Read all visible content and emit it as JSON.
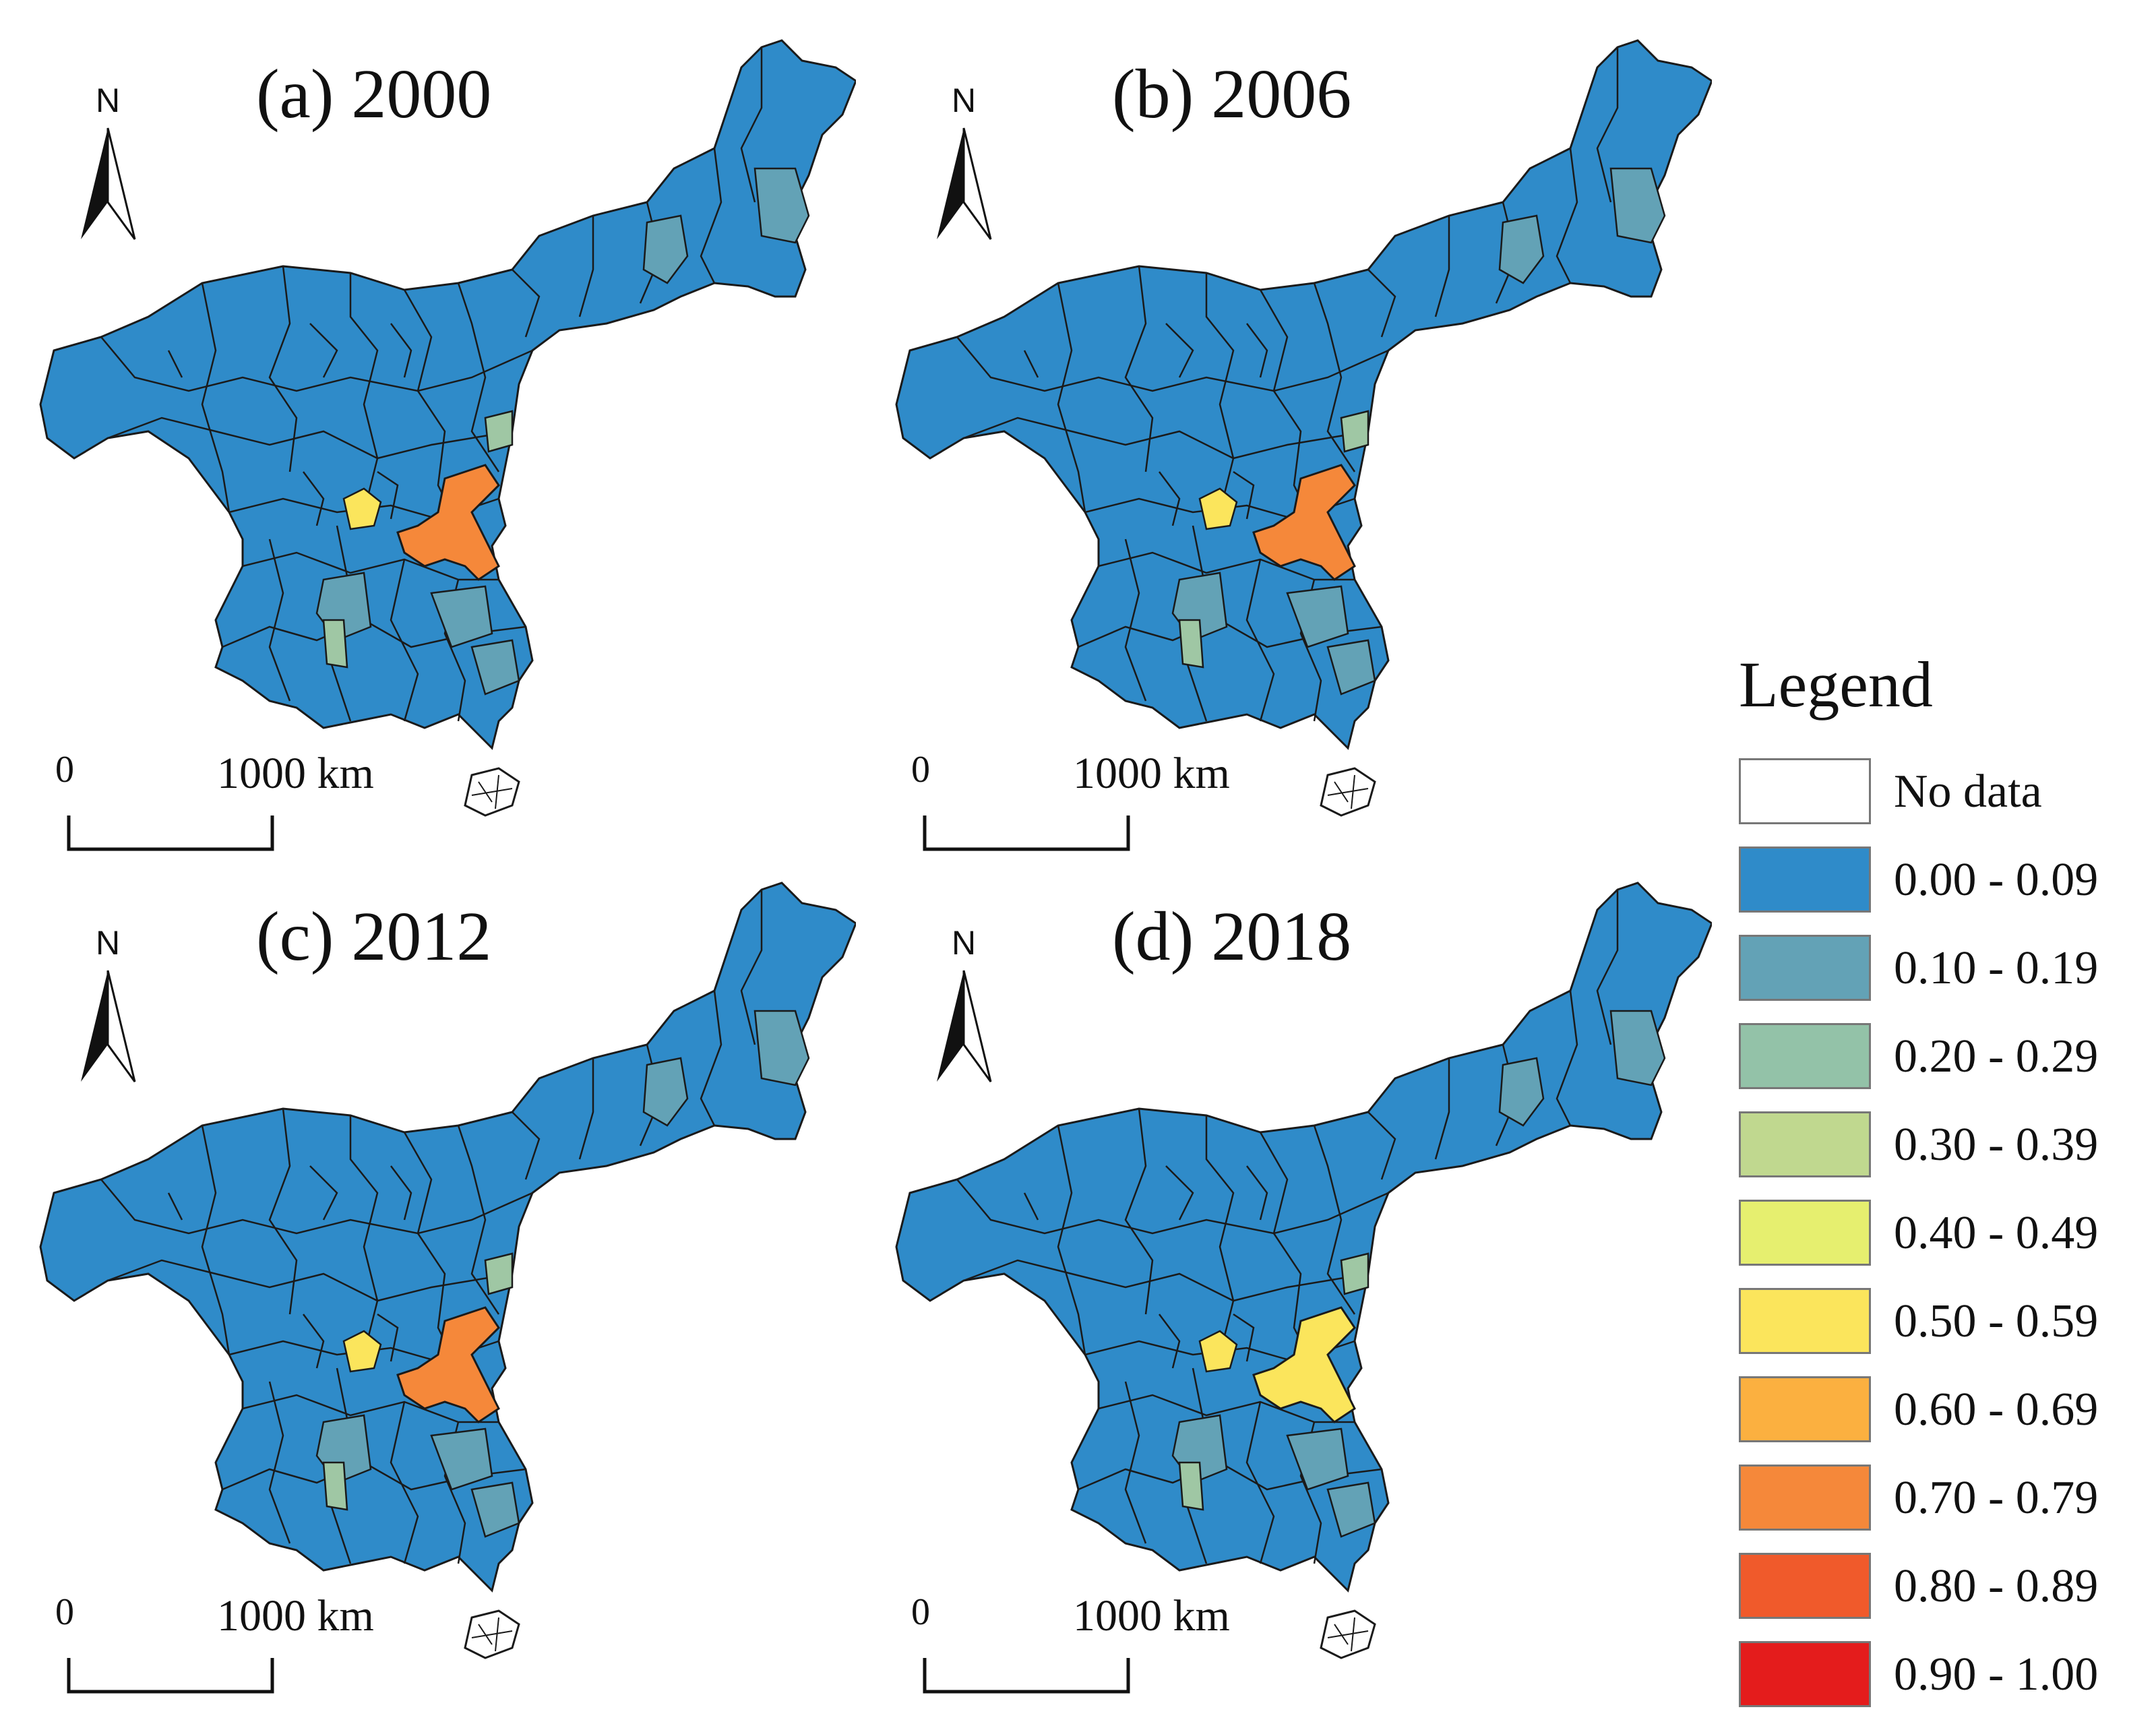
{
  "figure": {
    "panels": [
      {
        "title": "(a) 2000",
        "north": "N",
        "scale_zero": "0",
        "scale_dist": "1000 km",
        "core_class": "0.70 - 0.79",
        "core_color": "#f5883a",
        "west_class": "0.50 - 0.59",
        "west_color": "#fbe55c",
        "secondary_color": "#63a2b6",
        "tertiary_color": "#9fc7a4"
      },
      {
        "title": "(b) 2006",
        "north": "N",
        "scale_zero": "0",
        "scale_dist": "1000 km",
        "core_class": "0.70 - 0.79",
        "core_color": "#f5883a",
        "west_class": "0.50 - 0.59",
        "west_color": "#fbe55c",
        "secondary_color": "#63a2b6",
        "tertiary_color": "#9fc7a4"
      },
      {
        "title": "(c) 2012",
        "north": "N",
        "scale_zero": "0",
        "scale_dist": "1000 km",
        "core_class": "0.70 - 0.79",
        "core_color": "#f5883a",
        "west_class": "0.50 - 0.59",
        "west_color": "#fbe55c",
        "secondary_color": "#63a2b6",
        "tertiary_color": "#9fc7a4"
      },
      {
        "title": "(d) 2018",
        "north": "N",
        "scale_zero": "0",
        "scale_dist": "1000 km",
        "core_class": "0.50 - 0.59",
        "core_color": "#fbe55c",
        "west_class": "0.50 - 0.59",
        "west_color": "#fbe55c",
        "secondary_color": "#63a2b6",
        "tertiary_color": "#9fc7a4"
      }
    ]
  },
  "legend": {
    "title": "Legend",
    "items": [
      {
        "label": "No data",
        "color": "#ffffff"
      },
      {
        "label": "0.00 - 0.09",
        "color": "#2f8bc9"
      },
      {
        "label": "0.10 - 0.19",
        "color": "#63a2b6"
      },
      {
        "label": "0.20 - 0.29",
        "color": "#93c2a8"
      },
      {
        "label": "0.30 - 0.39",
        "color": "#c0d88f"
      },
      {
        "label": "0.40 - 0.49",
        "color": "#e6ef6f"
      },
      {
        "label": "0.50 - 0.59",
        "color": "#fbe55c"
      },
      {
        "label": "0.60 - 0.69",
        "color": "#fbb040"
      },
      {
        "label": "0.70 - 0.79",
        "color": "#f5883a"
      },
      {
        "label": "0.80 - 0.89",
        "color": "#f05a2b"
      },
      {
        "label": "0.90 - 1.00",
        "color": "#e41c1c"
      }
    ]
  }
}
